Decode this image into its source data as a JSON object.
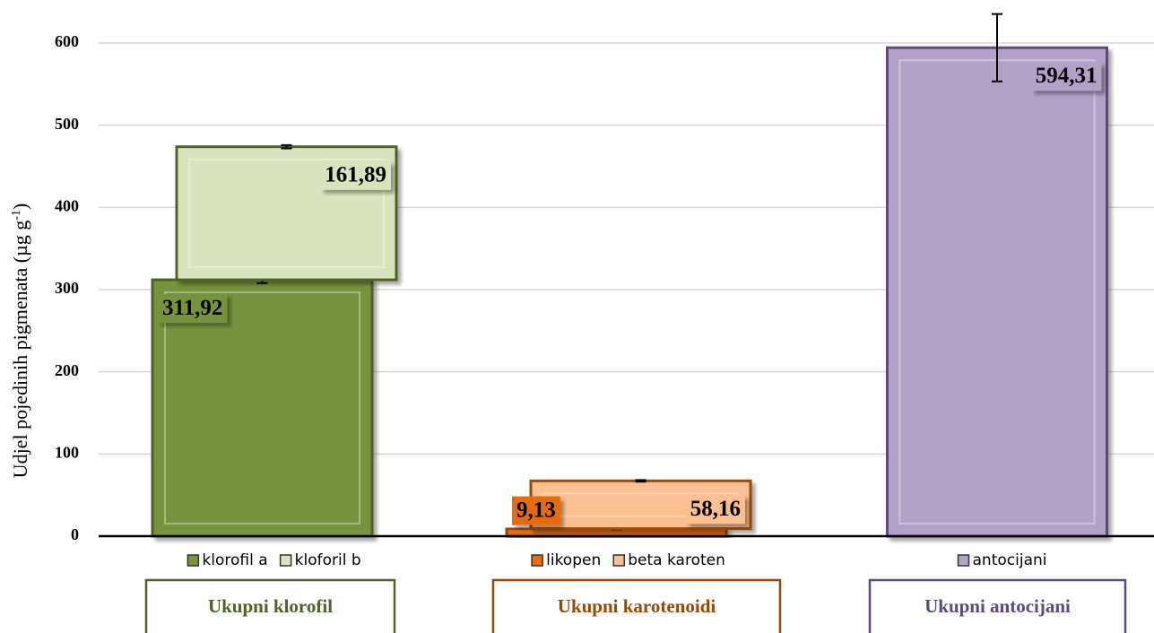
{
  "chart_data": {
    "type": "stacked_bar",
    "ylabel": "Udjel pojedinih pigmenata (µg g",
    "ylabel_sup": "-1",
    "ylabel_end": ")",
    "categories": [
      "Ukupni klorofil",
      "Ukupni karotenoidi",
      "Ukupni antocijani"
    ],
    "category_colors": [
      "#4f6228",
      "#984807",
      "#5f497a"
    ],
    "series": [
      {
        "name": "klorofil a",
        "color": "#77933c",
        "values": [
          311.92,
          null,
          null
        ],
        "value_labels": [
          "311,92",
          null,
          null
        ],
        "errors": [
          4,
          null,
          null
        ]
      },
      {
        "name": "kloforil b",
        "color": "#d7e4bd",
        "values": [
          161.89,
          null,
          null
        ],
        "value_labels": [
          "161,89",
          null,
          null
        ],
        "errors": [
          2,
          null,
          null
        ]
      },
      {
        "name": "likopen",
        "color": "#e46c0a",
        "values": [
          null,
          9.13,
          null
        ],
        "value_labels": [
          null,
          "9,13",
          null
        ],
        "errors": [
          null,
          1,
          null
        ]
      },
      {
        "name": "beta karoten",
        "color": "#fac090",
        "values": [
          null,
          58.16,
          null
        ],
        "value_labels": [
          null,
          "58,16",
          null
        ],
        "errors": [
          null,
          1,
          null
        ]
      },
      {
        "name": "antocijani",
        "color": "#b3a2c7",
        "values": [
          null,
          null,
          594.31
        ],
        "value_labels": [
          null,
          null,
          "594,31"
        ],
        "errors": [
          null,
          null,
          41
        ]
      }
    ],
    "ylim": [
      0,
      600
    ],
    "yticks": [
      0,
      100,
      200,
      300,
      400,
      500,
      600
    ],
    "grid": true
  }
}
